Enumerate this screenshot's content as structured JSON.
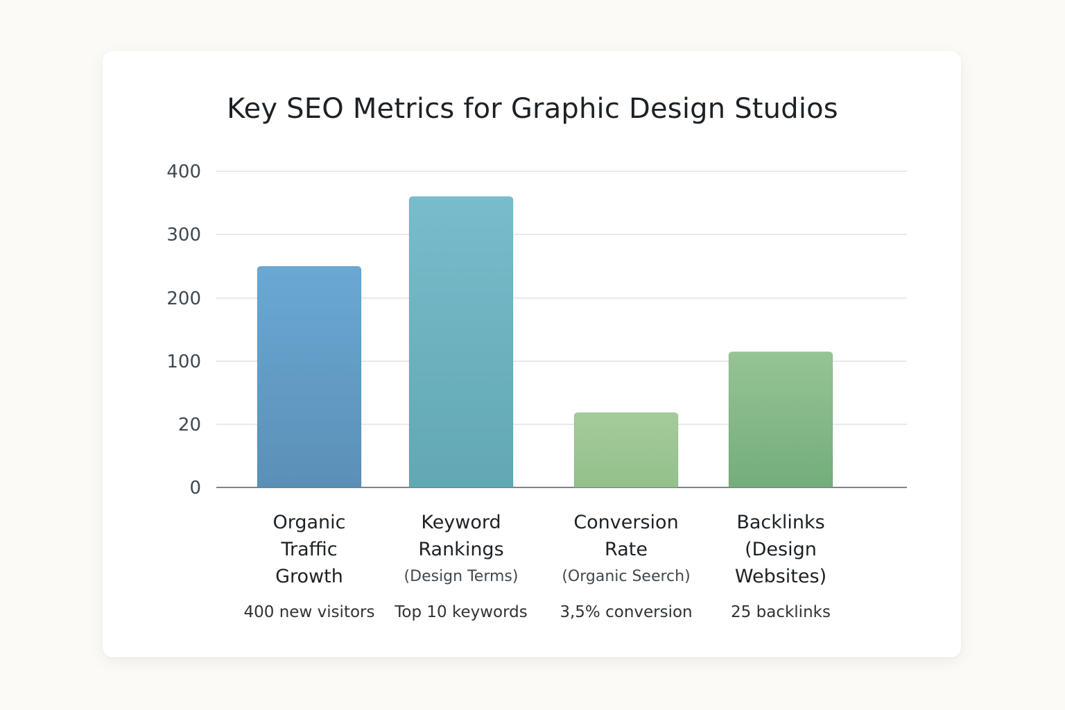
{
  "chart_data": {
    "type": "bar",
    "title": "Key SEO Metrics for Graphic Design Studios",
    "categories": [
      {
        "lines": [
          "Organic",
          "Traffic",
          "Growth"
        ],
        "sub": "",
        "note": "400 new visitors"
      },
      {
        "lines": [
          "Keyword",
          "Rankings"
        ],
        "sub": "(Design Terms)",
        "note": "Top 10 keywords"
      },
      {
        "lines": [
          "Conversion",
          "Rate"
        ],
        "sub": "(Organic Seerch)",
        "note": "3,5% conversion"
      },
      {
        "lines": [
          "Backlinks",
          "(Design",
          "Websites)"
        ],
        "sub": "",
        "note": "25 backlinks"
      }
    ],
    "values": [
      250,
      360,
      35,
      115
    ],
    "y_ticks": [
      "0",
      "20",
      "100",
      "200",
      "300",
      "400"
    ],
    "ylim": [
      0,
      400
    ],
    "grid": true,
    "colors": [
      [
        "#6aa8d3",
        "#5a90b8"
      ],
      [
        "#79bccc",
        "#62a7b3"
      ],
      [
        "#a5cb9b",
        "#93c08b"
      ],
      [
        "#95c495",
        "#74ad7c"
      ]
    ]
  }
}
